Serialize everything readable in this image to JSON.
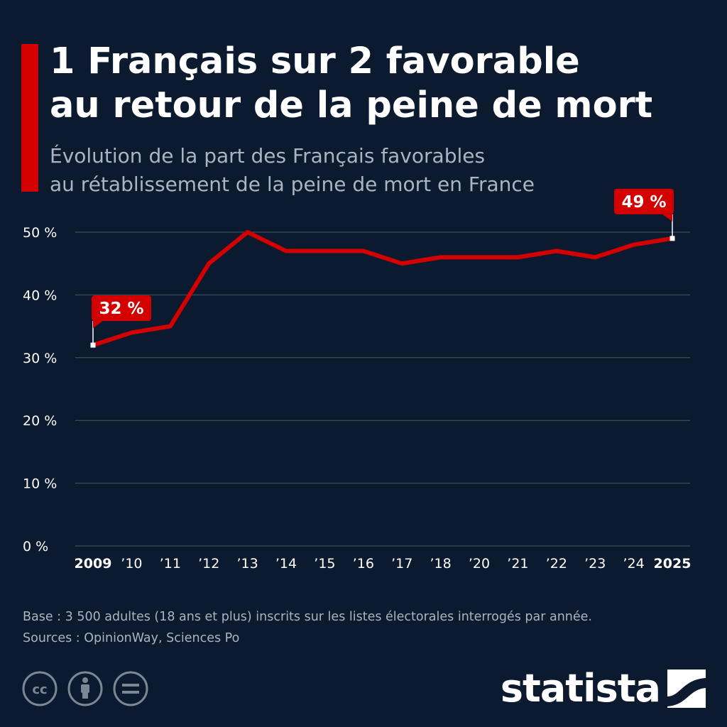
{
  "header": {
    "title_line1": "1 Français sur 2 favorable",
    "title_line2": "au retour de la peine de mort",
    "subtitle_line1": "Évolution de la part des Français favorables",
    "subtitle_line2": "au rétablissement de la peine de mort en France"
  },
  "chart_data": {
    "type": "line",
    "x": [
      "2009",
      "’10",
      "’11",
      "’12",
      "’13",
      "’14",
      "’15",
      "’16",
      "’17",
      "’18",
      "’20",
      "’21",
      "’22",
      "’23",
      "’24",
      "2025"
    ],
    "bold_ticks": [
      "2009",
      "2025"
    ],
    "series": [
      {
        "values": [
          32,
          34,
          35,
          45,
          50,
          47,
          47,
          47,
          45,
          46,
          46,
          46,
          47,
          46,
          48,
          49
        ],
        "color": "#d40000"
      }
    ],
    "yticks": [
      0,
      10,
      20,
      30,
      40,
      50
    ],
    "ytick_suffix": " %",
    "ylim": [
      0,
      50
    ],
    "grid": true,
    "annotations": [
      {
        "index": 0,
        "label": "32 %"
      },
      {
        "index": 15,
        "label": "49 %"
      }
    ]
  },
  "footer": {
    "note": "Base : 3 500 adultes (18 ans et plus) inscrits sur les listes électorales interrogés par année.",
    "sources": "Sources : OpinionWay, Sciences Po",
    "logo": "statista",
    "icons": [
      "cc-icon",
      "attribution-icon",
      "no-derivatives-icon"
    ]
  },
  "colors": {
    "background": "#0c1a2f",
    "accent": "#d40000",
    "grid": "#4a5666",
    "muted_text": "#aab4c2"
  }
}
